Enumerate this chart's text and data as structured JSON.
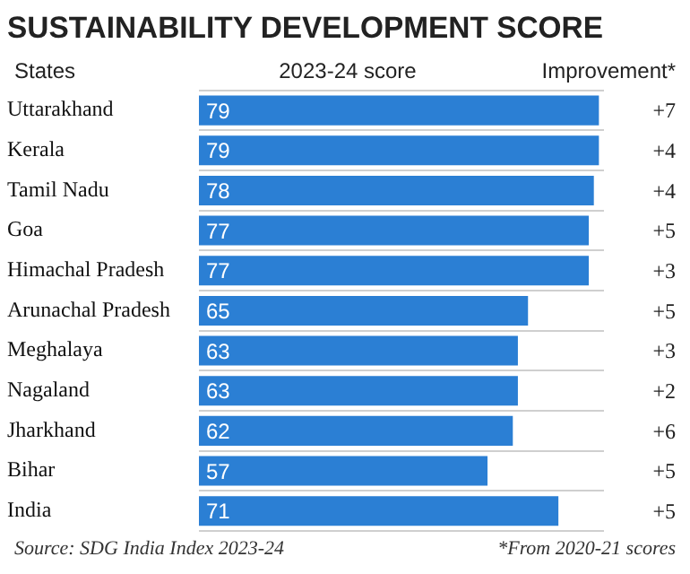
{
  "chart_data": {
    "type": "bar",
    "orientation": "horizontal",
    "title": "SUSTAINABILITY DEVELOPMENT SCORE",
    "ylabel": "States",
    "xlabel": "2023-24 score",
    "categories": [
      "Uttarakhand",
      "Kerala",
      "Tamil Nadu",
      "Goa",
      "Himachal Pradesh",
      "Arunachal Pradesh",
      "Meghalaya",
      "Nagaland",
      "Jharkhand",
      "Bihar",
      "India"
    ],
    "values": [
      79,
      79,
      78,
      77,
      77,
      65,
      63,
      63,
      62,
      57,
      71
    ],
    "color": "#2b7fd4",
    "data_labels": true,
    "tick_labels": "y",
    "grid": "y",
    "annotations": [
      "Improvement*",
      "+7",
      "+4",
      "+4",
      "+5",
      "+3",
      "+5",
      "+3",
      "+2",
      "+6",
      "+5",
      "+5",
      "Source: SDG India Index 2023-24",
      "*From 2020-21 scores"
    ]
  }
}
